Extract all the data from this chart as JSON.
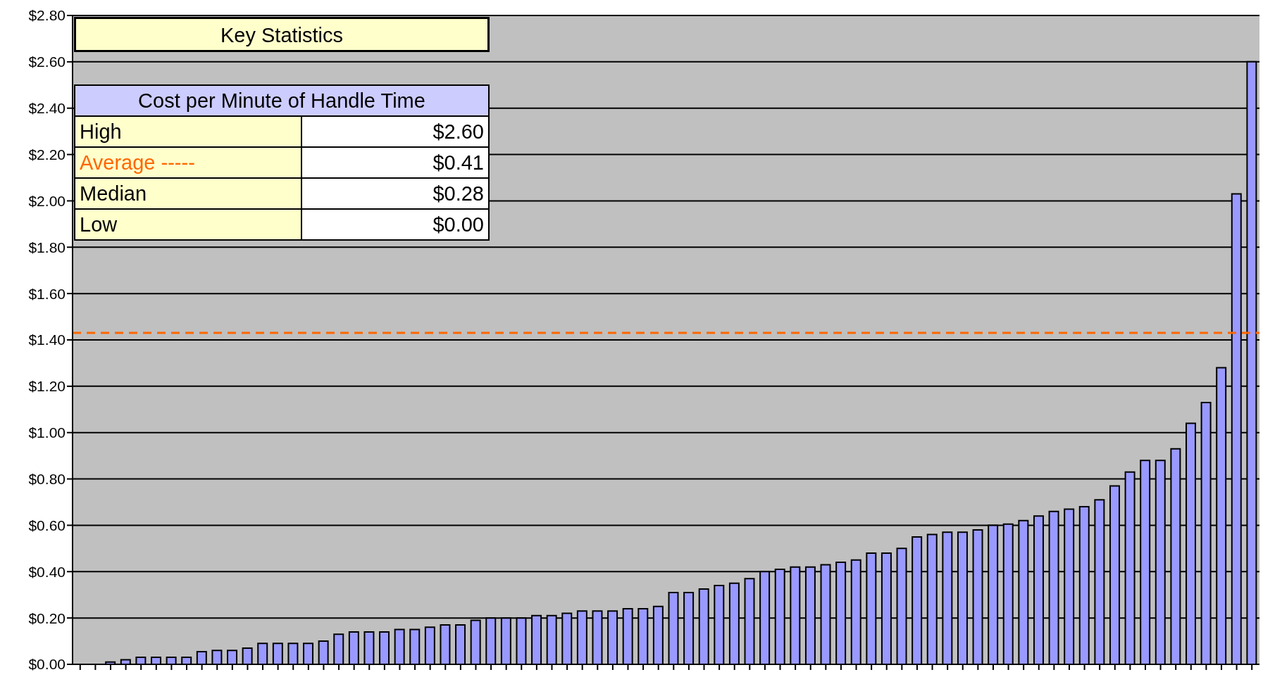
{
  "chart_data": {
    "type": "bar",
    "categories": [
      null,
      null,
      null,
      null,
      null,
      null,
      null,
      null,
      null,
      null,
      null,
      null,
      null,
      null,
      null,
      null,
      null,
      null,
      null,
      null,
      null,
      null,
      null,
      null,
      null,
      null,
      null,
      null,
      null,
      null,
      null,
      null,
      null,
      null,
      null,
      null,
      null,
      null,
      null,
      null,
      null,
      null,
      null,
      null,
      null,
      null,
      null,
      null,
      null,
      null,
      null,
      null,
      null,
      null,
      null,
      null,
      null,
      null,
      null,
      null,
      null,
      null,
      null,
      null,
      null,
      null,
      null,
      null,
      null,
      null,
      null,
      null,
      null,
      null,
      null,
      null,
      null,
      null
    ],
    "values": [
      0,
      0,
      0.01,
      0.02,
      0.03,
      0.03,
      0.03,
      0.03,
      0.055,
      0.06,
      0.06,
      0.07,
      0.09,
      0.09,
      0.09,
      0.09,
      0.1,
      0.13,
      0.14,
      0.14,
      0.14,
      0.15,
      0.15,
      0.16,
      0.17,
      0.17,
      0.19,
      0.2,
      0.2,
      0.2,
      0.21,
      0.21,
      0.22,
      0.23,
      0.23,
      0.23,
      0.24,
      0.24,
      0.25,
      0.31,
      0.31,
      0.325,
      0.34,
      0.35,
      0.37,
      0.4,
      0.41,
      0.42,
      0.42,
      0.43,
      0.44,
      0.45,
      0.48,
      0.48,
      0.5,
      0.55,
      0.56,
      0.57,
      0.57,
      0.58,
      0.6,
      0.605,
      0.62,
      0.64,
      0.66,
      0.67,
      0.68,
      0.71,
      0.77,
      0.83,
      0.88,
      0.88,
      0.93,
      1.04,
      1.13,
      1.28,
      2.03,
      2.6
    ],
    "color": "#9999ff",
    "ylim": [
      0,
      2.8
    ],
    "yticks": [
      {
        "value": 0,
        "label": "$0.00"
      },
      {
        "value": 0.2,
        "label": "$0.20"
      },
      {
        "value": 0.4,
        "label": "$0.40"
      },
      {
        "value": 0.6,
        "label": "$0.60"
      },
      {
        "value": 0.8,
        "label": "$0.80"
      },
      {
        "value": 1,
        "label": "$1.00"
      },
      {
        "value": 1.2,
        "label": "$1.20"
      },
      {
        "value": 1.4,
        "label": "$1.40"
      },
      {
        "value": 1.6,
        "label": "$1.60"
      },
      {
        "value": 1.8,
        "label": "$1.80"
      },
      {
        "value": 2,
        "label": "$2.00"
      },
      {
        "value": 2.2,
        "label": "$2.20"
      },
      {
        "value": 2.4,
        "label": "$2.40"
      },
      {
        "value": 2.6,
        "label": "$2.60"
      },
      {
        "value": 2.8,
        "label": "$2.80"
      }
    ],
    "grid": "y",
    "legend": false,
    "ref_lines": [
      {
        "axis": "y",
        "value": 1.43,
        "color": "#ff6600",
        "line_style": "dashed"
      }
    ],
    "annotations": [
      "Key Statistics",
      "Cost per Minute of Handle Time",
      "High",
      "$2.60",
      "Average -----",
      "$0.41",
      "Median",
      "$0.28",
      "Low",
      "$0.00"
    ]
  }
}
